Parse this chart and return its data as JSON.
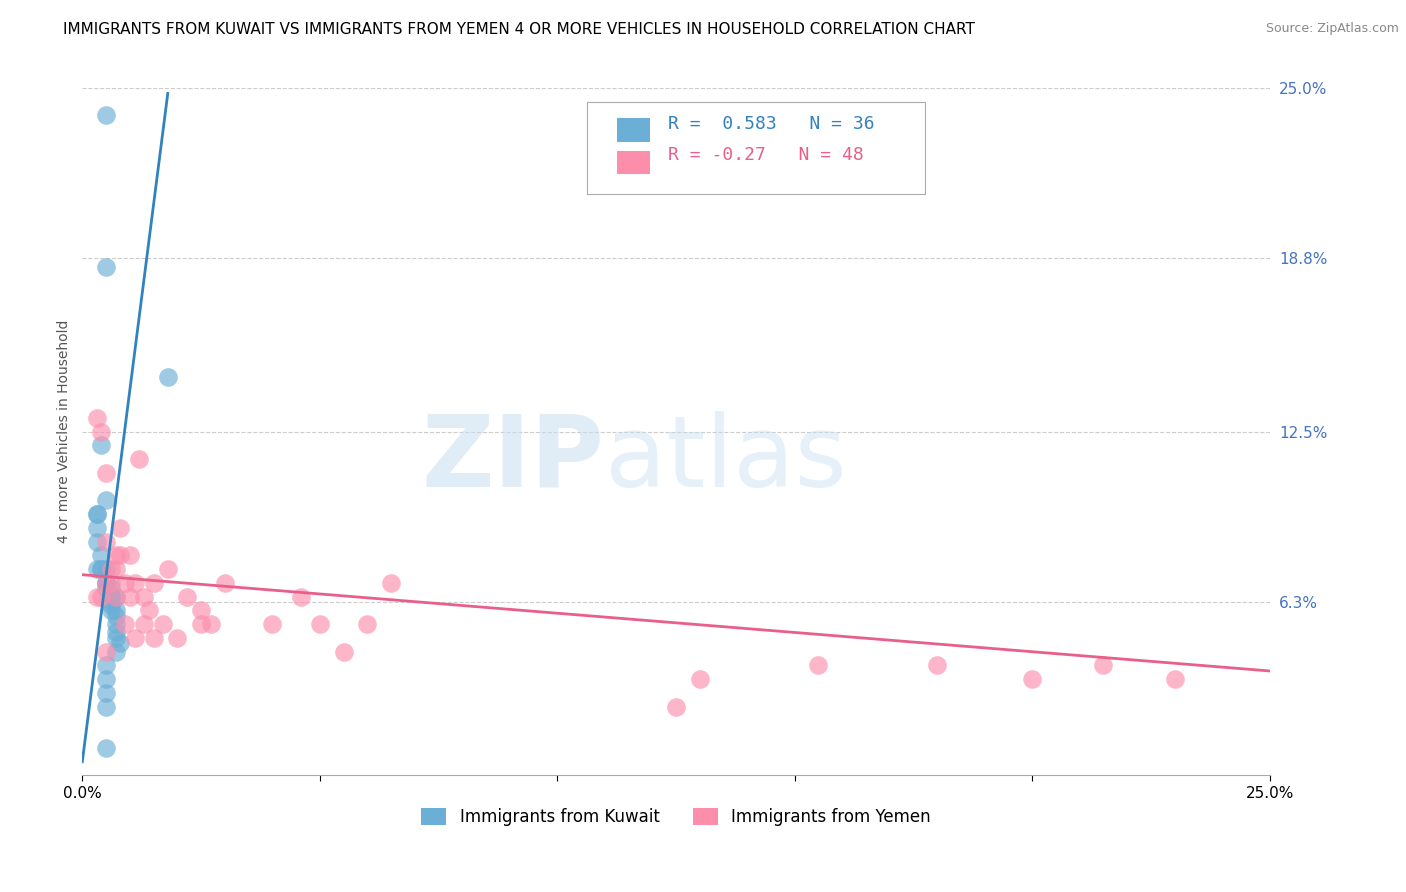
{
  "title": "IMMIGRANTS FROM KUWAIT VS IMMIGRANTS FROM YEMEN 4 OR MORE VEHICLES IN HOUSEHOLD CORRELATION CHART",
  "source": "Source: ZipAtlas.com",
  "ylabel": "4 or more Vehicles in Household",
  "watermark_zip": "ZIP",
  "watermark_atlas": "atlas",
  "xlim": [
    0.0,
    0.25
  ],
  "ylim": [
    0.0,
    0.25
  ],
  "xtick_values": [
    0.0,
    0.05,
    0.1,
    0.15,
    0.2,
    0.25
  ],
  "xticklabels": [
    "0.0%",
    "",
    "",
    "",
    "",
    "25.0%"
  ],
  "ytick_labels_right": [
    "25.0%",
    "18.8%",
    "12.5%",
    "6.3%"
  ],
  "ytick_values_right": [
    0.25,
    0.188,
    0.125,
    0.063
  ],
  "kuwait_color": "#6baed6",
  "yemen_color": "#fc8eac",
  "kuwait_line_color": "#3182bd",
  "yemen_line_color": "#e8608a",
  "kuwait_R": 0.583,
  "kuwait_N": 36,
  "yemen_R": -0.27,
  "yemen_N": 48,
  "kuwait_line_x0": 0.0,
  "kuwait_line_y0": 0.005,
  "kuwait_line_x1": 0.018,
  "kuwait_line_y1": 0.248,
  "yemen_line_x0": 0.0,
  "yemen_line_y0": 0.073,
  "yemen_line_x1": 0.25,
  "yemen_line_y1": 0.038,
  "kuwait_scatter_x": [
    0.005,
    0.003,
    0.005,
    0.004,
    0.005,
    0.003,
    0.003,
    0.003,
    0.004,
    0.004,
    0.003,
    0.004,
    0.005,
    0.005,
    0.005,
    0.005,
    0.006,
    0.006,
    0.006,
    0.007,
    0.006,
    0.006,
    0.006,
    0.007,
    0.007,
    0.007,
    0.007,
    0.007,
    0.008,
    0.007,
    0.005,
    0.005,
    0.018,
    0.005,
    0.005,
    0.005
  ],
  "kuwait_scatter_y": [
    0.24,
    0.095,
    0.185,
    0.12,
    0.1,
    0.095,
    0.09,
    0.085,
    0.08,
    0.075,
    0.075,
    0.075,
    0.075,
    0.07,
    0.07,
    0.068,
    0.068,
    0.065,
    0.065,
    0.065,
    0.063,
    0.062,
    0.06,
    0.06,
    0.058,
    0.055,
    0.052,
    0.05,
    0.048,
    0.045,
    0.04,
    0.035,
    0.145,
    0.03,
    0.025,
    0.01
  ],
  "yemen_scatter_x": [
    0.003,
    0.003,
    0.004,
    0.004,
    0.005,
    0.005,
    0.005,
    0.005,
    0.006,
    0.006,
    0.007,
    0.007,
    0.007,
    0.008,
    0.008,
    0.009,
    0.009,
    0.01,
    0.01,
    0.011,
    0.011,
    0.012,
    0.013,
    0.013,
    0.014,
    0.015,
    0.015,
    0.017,
    0.018,
    0.02,
    0.022,
    0.025,
    0.025,
    0.027,
    0.03,
    0.04,
    0.046,
    0.05,
    0.055,
    0.06,
    0.065,
    0.125,
    0.13,
    0.155,
    0.18,
    0.2,
    0.215,
    0.23
  ],
  "yemen_scatter_y": [
    0.13,
    0.065,
    0.125,
    0.065,
    0.11,
    0.085,
    0.07,
    0.045,
    0.075,
    0.07,
    0.08,
    0.075,
    0.065,
    0.09,
    0.08,
    0.07,
    0.055,
    0.08,
    0.065,
    0.07,
    0.05,
    0.115,
    0.065,
    0.055,
    0.06,
    0.07,
    0.05,
    0.055,
    0.075,
    0.05,
    0.065,
    0.06,
    0.055,
    0.055,
    0.07,
    0.055,
    0.065,
    0.055,
    0.045,
    0.055,
    0.07,
    0.025,
    0.035,
    0.04,
    0.04,
    0.035,
    0.04,
    0.035
  ],
  "background_color": "#ffffff",
  "grid_color": "#cccccc",
  "title_fontsize": 11,
  "axis_label_fontsize": 10,
  "tick_fontsize": 11,
  "legend_fontsize": 13
}
